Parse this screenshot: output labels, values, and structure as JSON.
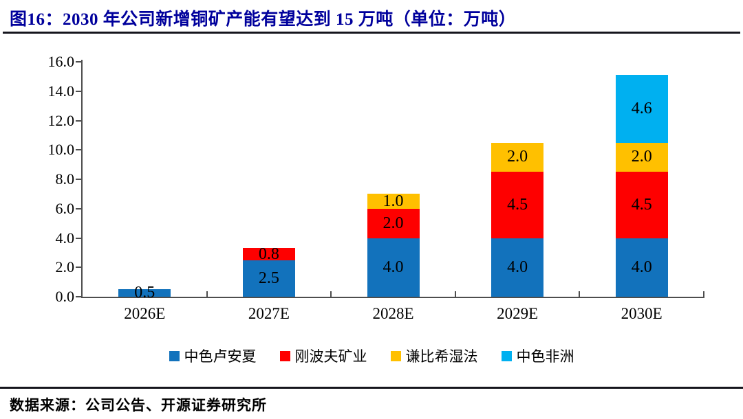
{
  "title": "图16：2030 年公司新增铜矿产能有望达到 15 万吨（单位：万吨）",
  "footer": {
    "source": "数据来源：公司公告、开源证券研究所"
  },
  "colors": {
    "title_text": "#00009C",
    "axis": "#4d4d4d",
    "series_blue": "#1272BC",
    "series_red": "#FE0000",
    "series_gold": "#FFC000",
    "series_lightblue": "#00B0F0"
  },
  "chart_data": {
    "type": "bar",
    "stacked": true,
    "title": "图16：2030 年公司新增铜矿产能有望达到 15 万吨（单位：万吨）",
    "categories": [
      "2026E",
      "2027E",
      "2028E",
      "2029E",
      "2030E"
    ],
    "series": [
      {
        "name": "中色卢安夏",
        "color": "#1272BC",
        "values": [
          0.5,
          2.5,
          4.0,
          4.0,
          4.0
        ]
      },
      {
        "name": "刚波夫矿业",
        "color": "#FE0000",
        "values": [
          0,
          0.8,
          2.0,
          4.5,
          4.5
        ]
      },
      {
        "name": "谦比希湿法",
        "color": "#FFC000",
        "values": [
          0,
          0,
          1.0,
          2.0,
          2.0
        ]
      },
      {
        "name": "中色非洲",
        "color": "#00B0F0",
        "values": [
          0,
          0,
          0,
          0,
          4.6
        ]
      }
    ],
    "totals": [
      0.5,
      3.3,
      7.0,
      10.5,
      15.1
    ],
    "segment_label_format": "one-decimal",
    "xlabel": "",
    "ylabel": "",
    "ylim": [
      0,
      16
    ],
    "ytick_step": 2,
    "yticks": [
      "0.0",
      "2.0",
      "4.0",
      "6.0",
      "8.0",
      "10.0",
      "12.0",
      "14.0",
      "16.0"
    ],
    "grid": false,
    "legend_position": "bottom"
  }
}
